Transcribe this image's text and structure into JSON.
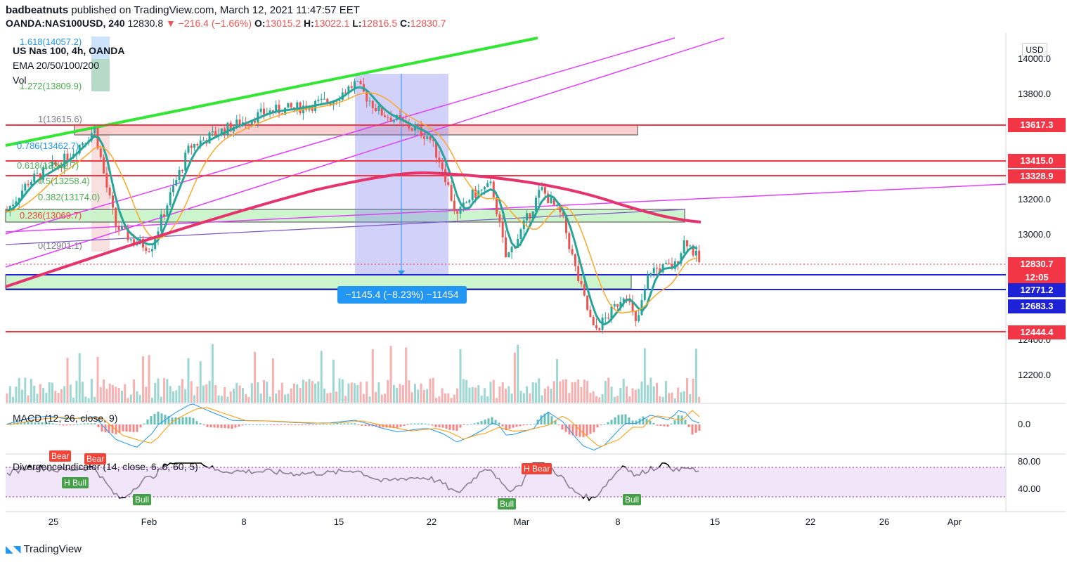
{
  "header": {
    "publisher": "badbeatnuts",
    "published_text": "published on TradingView.com, March 12, 2021 11:47:57 EET",
    "symbol": "OANDA:NAS100USD, 240",
    "last": "12830.8",
    "change": "−216.4 (−1.66%)",
    "o_label": "O:",
    "o_value": "13015.2",
    "h_label": "H:",
    "h_value": "13022.1",
    "l_label": "L:",
    "l_value": "12816.5",
    "c_label": "C:",
    "c_value": "12830.7"
  },
  "legend": {
    "title": "US Nas 100, 4h, OANDA",
    "ema": "EMA 20/50/100/200",
    "vol": "Vol",
    "currency": "USD"
  },
  "fib_levels": [
    {
      "label": "1.618(14057.2)",
      "color": "#2196f3"
    },
    {
      "label": "1.272(13809.9)",
      "color": "#4caf50"
    },
    {
      "label": "1(13615.6)",
      "color": "#787b86"
    },
    {
      "label": "0.786(13462.7)",
      "color": "#2196f3"
    },
    {
      "label": "0.618(13342.7)",
      "color": "#4caf50"
    },
    {
      "label": "0.5(13258.4)",
      "color": "#4caf50"
    },
    {
      "label": "0.382(13174.0)",
      "color": "#4caf50"
    },
    {
      "label": "0.236(13069.7)",
      "color": "#f44336"
    },
    {
      "label": "0(12901.1)",
      "color": "#787b86"
    }
  ],
  "price_tags": [
    {
      "label": "13617.3",
      "color": "#f23645"
    },
    {
      "label": "13415.0",
      "color": "#f23645"
    },
    {
      "label": "13328.9",
      "color": "#f23645"
    },
    {
      "label": "12830.7",
      "color": "#f23645"
    },
    {
      "label": "12:05",
      "color": "#f23645"
    },
    {
      "label": "12771.2",
      "color": "#1e22d6"
    },
    {
      "label": "12683.3",
      "color": "#1e22d6"
    },
    {
      "label": "12444.4",
      "color": "#f23645"
    }
  ],
  "measure_label": "−1145.4 (−8.23%) −11454",
  "macd_label": "MACD (12, 26, close, 9)",
  "macd_axis": "0.0",
  "div_label": "DivergenceIndicator (14, close, 6, 6, 60, 5)",
  "div_axis": [
    "80.00",
    "40.00"
  ],
  "signals": {
    "bear": "Bear",
    "h_bull": "H Bull",
    "bull": "Bull",
    "h_bear": "H Bear"
  },
  "brand": "TradingView",
  "chart_data": {
    "type": "candlestick",
    "symbol": "US Nas 100",
    "timeframe": "4h",
    "y_ticks": [
      14000.0,
      13800.0,
      13600.0,
      13400.0,
      13200.0,
      13000.0,
      12800.0,
      12600.0,
      12400.0,
      12200.0
    ],
    "y_tick_labels": [
      "14000.0",
      "13800.0",
      "13600.0",
      "13400.0",
      "13200.0",
      "13000.0",
      "12800.0",
      "12600.0",
      "12400.0",
      "12200.0"
    ],
    "x_tick_labels": [
      "25",
      "Feb",
      "8",
      "15",
      "22",
      "Mar",
      "8",
      "15",
      "22",
      "26",
      "Apr"
    ],
    "horizontal_levels": [
      13617.3,
      13415.0,
      13328.9,
      12771.2,
      12683.3,
      12444.4
    ],
    "last_price": 12830.7,
    "measured_move": {
      "points": -1145.4,
      "percent": -8.23,
      "ticks": -11454
    }
  }
}
